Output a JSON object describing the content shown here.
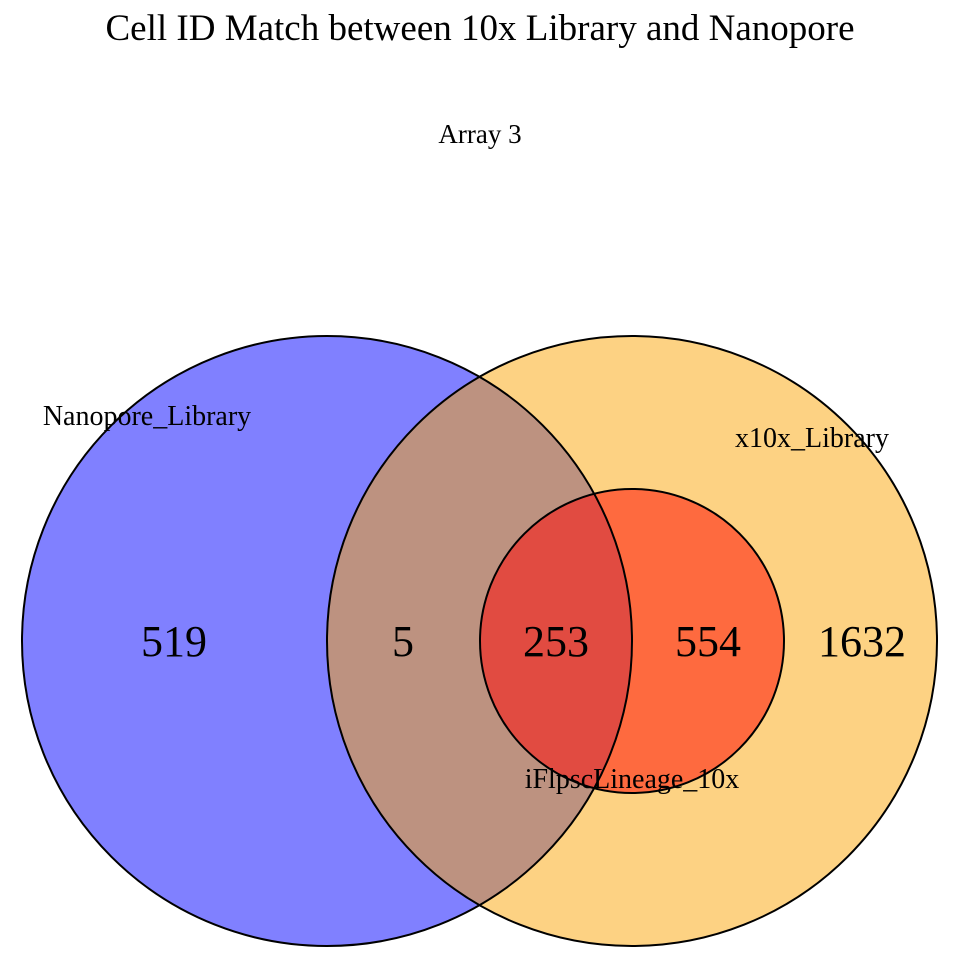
{
  "title": "Cell ID Match between 10x Library and Nanopore",
  "subtitle": "Array 3",
  "colors": {
    "nanopore": "#8080ff",
    "x10x": "#fdd283",
    "nanopore_x10x_overlap": "#bd9280",
    "triple_overlap": "#e14b41",
    "ifl_x10x_only": "#fe6a3f",
    "outline": "#000000"
  },
  "chart_data": {
    "type": "venn",
    "sets": [
      "Nanopore_Library",
      "x10x_Library",
      "iFlpscLineage_10x"
    ],
    "regions": [
      {
        "sets": [
          "Nanopore_Library"
        ],
        "value": 519
      },
      {
        "sets": [
          "Nanopore_Library",
          "x10x_Library"
        ],
        "value": 5
      },
      {
        "sets": [
          "Nanopore_Library",
          "x10x_Library",
          "iFlpscLineage_10x"
        ],
        "value": 253
      },
      {
        "sets": [
          "x10x_Library",
          "iFlpscLineage_10x"
        ],
        "value": 554
      },
      {
        "sets": [
          "x10x_Library"
        ],
        "value": 1632
      }
    ]
  }
}
